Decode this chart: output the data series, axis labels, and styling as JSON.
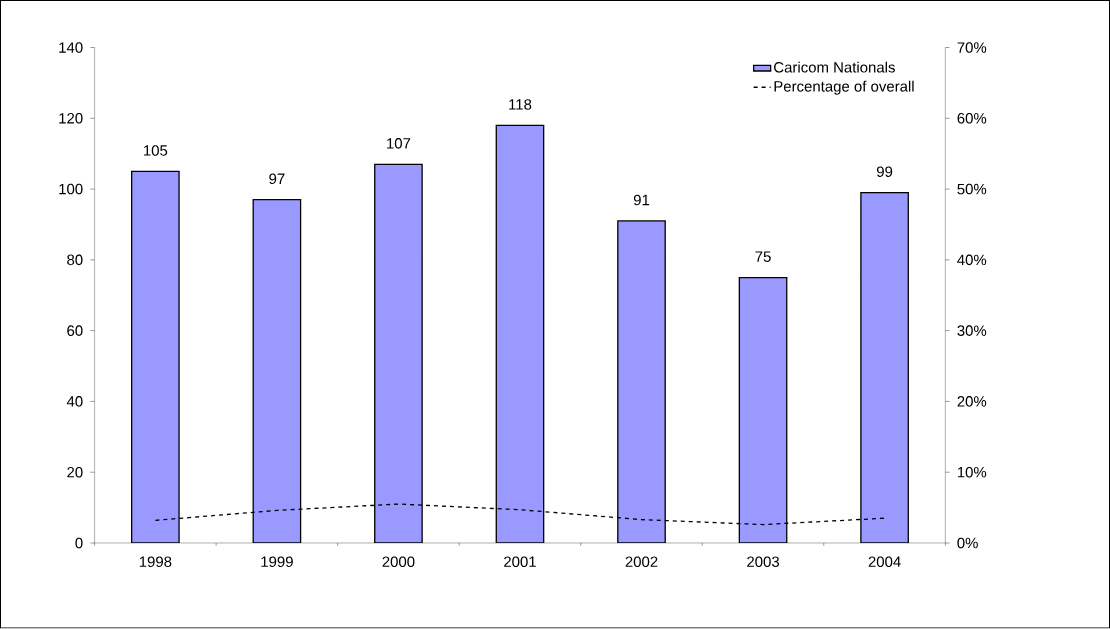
{
  "chart_data": {
    "type": "bar",
    "categories": [
      "1998",
      "1999",
      "2000",
      "2001",
      "2002",
      "2003",
      "2004"
    ],
    "series": [
      {
        "name": "Caricom Nationals",
        "color": "#9999ff",
        "values": [
          105,
          97,
          107,
          118,
          91,
          75,
          99
        ],
        "value_labels": [
          "105",
          "97",
          "107",
          "118",
          "91",
          "75",
          "99"
        ]
      },
      {
        "name": "Percentage of overall",
        "type": "line",
        "axis": "y2",
        "color": "#000000",
        "line_style": "dashed",
        "values": [
          3.2,
          4.6,
          5.5,
          4.7,
          3.3,
          2.6,
          3.5
        ]
      }
    ],
    "ylim": [
      0,
      140
    ],
    "yticks": [
      0,
      20,
      40,
      60,
      80,
      100,
      120,
      140
    ],
    "y2lim": [
      0,
      70
    ],
    "y2ticks": [
      {
        "value": 0,
        "label": "0%"
      },
      {
        "value": 10,
        "label": "10%"
      },
      {
        "value": 20,
        "label": "20%"
      },
      {
        "value": 30,
        "label": "30%"
      },
      {
        "value": 40,
        "label": "40%"
      },
      {
        "value": 50,
        "label": "50%"
      },
      {
        "value": 60,
        "label": "60%"
      },
      {
        "value": 70,
        "label": "70%"
      }
    ],
    "grid": false,
    "legend": "top right",
    "marker": "none"
  }
}
